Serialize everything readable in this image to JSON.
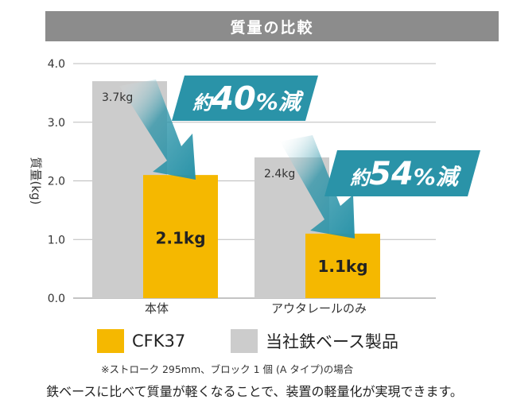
{
  "title": "質量の比較",
  "colors": {
    "cfk": "#f5b800",
    "base": "#cccccc",
    "arrow": "#2a93a8",
    "banner": "#2a93a8",
    "title_bg": "#8c8c8c"
  },
  "chart_data": {
    "type": "bar",
    "categories": [
      "本体",
      "アウタレールのみ"
    ],
    "series": [
      {
        "name": "当社鉄ベース製品",
        "values": [
          3.7,
          2.4
        ]
      },
      {
        "name": "CFK37",
        "values": [
          2.1,
          1.1
        ]
      }
    ],
    "data_labels": {
      "base": [
        "3.7kg",
        "2.4kg"
      ],
      "cfk": [
        "2.1kg",
        "1.1kg"
      ]
    },
    "reductions": [
      {
        "prefix": "約",
        "value": "40",
        "suffix": "%減"
      },
      {
        "prefix": "約",
        "value": "54",
        "suffix": "%減"
      }
    ],
    "ylabel": "質量(kg)",
    "ylim": [
      0,
      4
    ],
    "yticks": [
      "0.0",
      "1.0",
      "2.0",
      "3.0",
      "4.0"
    ],
    "grid": true,
    "legend": "bottom"
  },
  "legend": [
    {
      "label": "CFK37",
      "color": "#f5b800"
    },
    {
      "label": "当社鉄ベース製品",
      "color": "#cccccc"
    }
  ],
  "note": "※ストローク 295mm、ブロック 1 個 (A タイプ)の場合",
  "caption": "鉄ベースに比べて質量が軽くなることで、装置の軽量化が実現できます。"
}
